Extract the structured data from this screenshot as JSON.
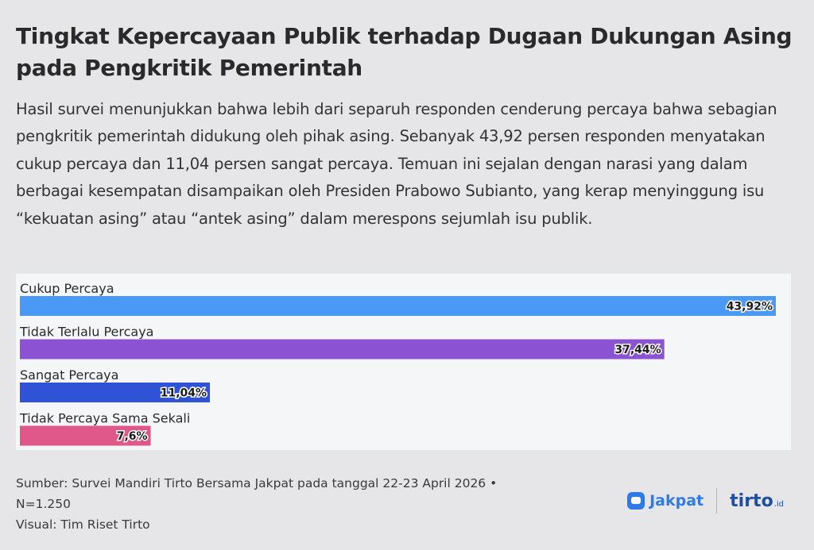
{
  "title": "Tingkat Kepercayaan Publik terhadap Dugaan Dukungan Asing pada Pengkritik Pemerintah",
  "description": "Hasil survei menunjukkan bahwa lebih dari separuh responden cenderung percaya bahwa sebagian pengkritik pemerintah didukung oleh pihak asing. Sebanyak 43,92 persen responden menyatakan cukup percaya dan 11,04 persen sangat percaya. Temuan ini sejalan dengan narasi yang dalam berbagai kesempatan disampaikan oleh Presiden Prabowo Subianto, yang kerap menyinggung isu “kekuatan asing” atau “antek asing” dalam merespons sejumlah isu publik.",
  "chart_data": {
    "type": "bar",
    "orientation": "horizontal",
    "categories": [
      "Cukup Percaya",
      "Tidak Terlalu Percaya",
      "Sangat Percaya",
      "Tidak Percaya Sama Sekali"
    ],
    "values": [
      43.92,
      37.44,
      11.04,
      7.6
    ],
    "value_labels": [
      "43,92%",
      "37,44%",
      "11,04%",
      "7,6%"
    ],
    "colors": [
      "#4a9af5",
      "#8b52d4",
      "#2f52d6",
      "#e0588a"
    ],
    "xlim": [
      0,
      43.92
    ],
    "grid": false
  },
  "footer": {
    "source": "Sumber: Survei Mandiri Tirto Bersama Jakpat pada tanggal 22-23 April 2026 •",
    "sample": "N=1.250",
    "visual": "Visual: Tim Riset Tirto"
  },
  "logos": {
    "jakpat": "Jakpat",
    "tirto": "tirto",
    "tirto_suffix": ".id"
  }
}
